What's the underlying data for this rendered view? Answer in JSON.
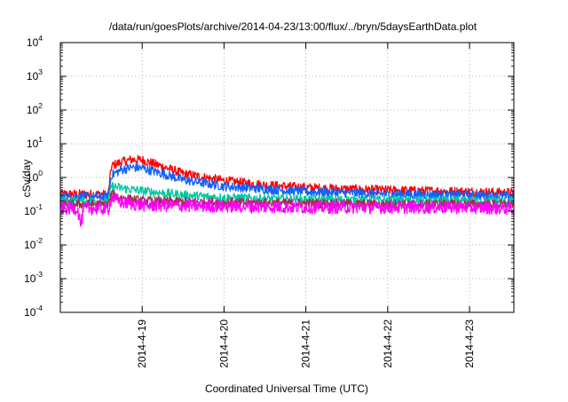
{
  "title": "/data/run/goesPlots/archive/2014-04-23/13:00/flux/../bryn/5daysEarthData.plot",
  "chart_data": {
    "type": "line",
    "title": "/data/run/goesPlots/archive/2014-04-23/13:00/flux/../bryn/5daysEarthData.plot",
    "xlabel": "Coordinated Universal Time (UTC)",
    "ylabel": "cSv/day",
    "yscale": "log",
    "ylim": [
      0.0001,
      10000
    ],
    "xlim": [
      "2014-04-18 00:00",
      "2014-04-23 13:00"
    ],
    "grid": true,
    "x_ticks": [
      "2014-4-19",
      "2014-4-20",
      "2014-4-21",
      "2014-4-22",
      "2014-4-23"
    ],
    "y_ticks": [
      {
        "base": "10",
        "exp": "-4"
      },
      {
        "base": "10",
        "exp": "-3"
      },
      {
        "base": "10",
        "exp": "-2"
      },
      {
        "base": "10",
        "exp": "-1"
      },
      {
        "base": "10",
        "exp": "0"
      },
      {
        "base": "10",
        "exp": "1"
      },
      {
        "base": "10",
        "exp": "2"
      },
      {
        "base": "10",
        "exp": "3"
      },
      {
        "base": "10",
        "exp": "4"
      }
    ],
    "series": [
      {
        "color": "#ff0000",
        "x": [
          "2014-04-18 00:00",
          "2014-04-18 12:00",
          "2014-04-18 14:00",
          "2014-04-18 15:00",
          "2014-04-18 18:00",
          "2014-04-18 21:00",
          "2014-04-19 00:00",
          "2014-04-19 06:00",
          "2014-04-19 12:00",
          "2014-04-20 00:00",
          "2014-04-20 12:00",
          "2014-04-21 00:00",
          "2014-04-21 12:00",
          "2014-04-22 00:00",
          "2014-04-22 12:00",
          "2014-04-23 00:00",
          "2014-04-23 13:00"
        ],
        "y": [
          0.32,
          0.32,
          0.3,
          2.2,
          2.9,
          3.4,
          3.3,
          2.1,
          1.3,
          0.8,
          0.6,
          0.5,
          0.45,
          0.42,
          0.4,
          0.38,
          0.35
        ]
      },
      {
        "color": "#1060ff",
        "x": [
          "2014-04-18 00:00",
          "2014-04-18 12:00",
          "2014-04-18 14:00",
          "2014-04-18 15:00",
          "2014-04-18 18:00",
          "2014-04-18 21:00",
          "2014-04-19 00:00",
          "2014-04-19 06:00",
          "2014-04-19 12:00",
          "2014-04-20 00:00",
          "2014-04-20 12:00",
          "2014-04-21 00:00",
          "2014-04-21 12:00",
          "2014-04-22 00:00",
          "2014-04-22 12:00",
          "2014-04-23 00:00",
          "2014-04-23 13:00"
        ],
        "y": [
          0.27,
          0.27,
          0.26,
          1.2,
          1.7,
          2.0,
          1.9,
          1.3,
          0.85,
          0.55,
          0.45,
          0.38,
          0.35,
          0.32,
          0.31,
          0.3,
          0.28
        ]
      },
      {
        "color": "#00c8a0",
        "x": [
          "2014-04-18 00:00",
          "2014-04-18 12:00",
          "2014-04-18 14:00",
          "2014-04-18 15:00",
          "2014-04-18 18:00",
          "2014-04-19 00:00",
          "2014-04-19 12:00",
          "2014-04-20 00:00",
          "2014-04-21 00:00",
          "2014-04-22 00:00",
          "2014-04-23 00:00",
          "2014-04-23 13:00"
        ],
        "y": [
          0.2,
          0.2,
          0.19,
          0.55,
          0.48,
          0.4,
          0.3,
          0.25,
          0.22,
          0.21,
          0.2,
          0.2
        ]
      },
      {
        "color": "#a0304a",
        "x": [
          "2014-04-18 00:00",
          "2014-04-18 12:00",
          "2014-04-18 14:00",
          "2014-04-18 15:00",
          "2014-04-18 18:00",
          "2014-04-19 00:00",
          "2014-04-20 00:00",
          "2014-04-21 00:00",
          "2014-04-22 00:00",
          "2014-04-23 00:00",
          "2014-04-23 13:00"
        ],
        "y": [
          0.16,
          0.16,
          0.15,
          0.32,
          0.25,
          0.2,
          0.18,
          0.17,
          0.16,
          0.16,
          0.16
        ]
      },
      {
        "color": "#ff00ff",
        "x": [
          "2014-04-18 00:00",
          "2014-04-18 05:00",
          "2014-04-18 06:00",
          "2014-04-18 07:00",
          "2014-04-18 12:00",
          "2014-04-18 14:00",
          "2014-04-18 15:00",
          "2014-04-18 18:00",
          "2014-04-19 00:00",
          "2014-04-20 00:00",
          "2014-04-21 00:00",
          "2014-04-22 00:00",
          "2014-04-23 00:00",
          "2014-04-23 13:00"
        ],
        "y": [
          0.12,
          0.12,
          0.04,
          0.12,
          0.12,
          0.11,
          0.25,
          0.18,
          0.15,
          0.14,
          0.13,
          0.13,
          0.13,
          0.12
        ]
      }
    ]
  }
}
